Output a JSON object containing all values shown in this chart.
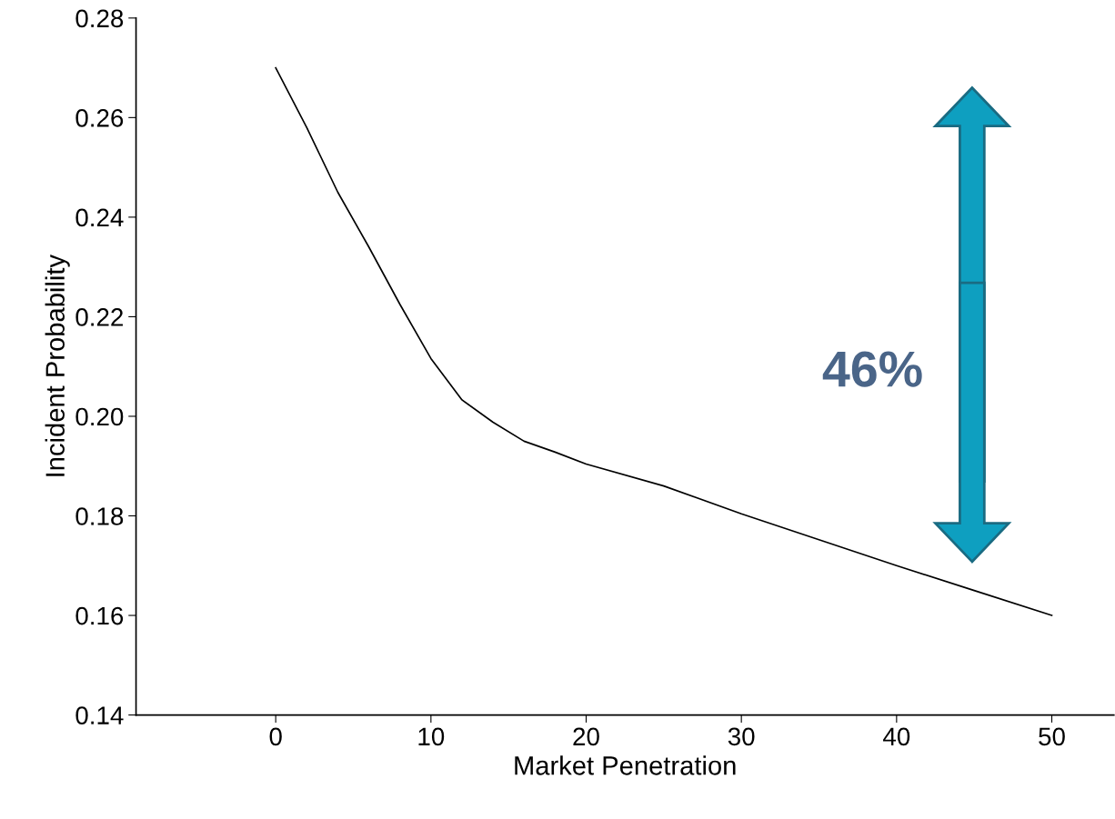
{
  "chart_data": {
    "type": "line",
    "xlabel": "Market Penetration",
    "ylabel": "Incident Probability",
    "x": [
      0,
      2,
      4,
      6,
      8,
      10,
      12,
      14,
      16,
      18,
      20,
      25,
      30,
      35,
      40,
      45,
      50
    ],
    "series": [
      {
        "color": "#000000",
        "values": [
          0.27,
          0.258,
          0.245,
          0.234,
          0.2225,
          0.2116,
          0.2033,
          0.1988,
          0.195,
          0.1928,
          0.1904,
          0.186,
          0.1804,
          0.1752,
          0.17,
          0.165,
          0.16
        ]
      }
    ],
    "xlim": [
      -9,
      54
    ],
    "xticks": [
      0,
      10,
      20,
      30,
      40,
      50
    ],
    "ylim": [
      0.14,
      0.28
    ],
    "yticks": [
      {
        "value": 0.14,
        "label": "0.14"
      },
      {
        "value": 0.16,
        "label": "0.16"
      },
      {
        "value": 0.18,
        "label": "0.18"
      },
      {
        "value": 0.2,
        "label": "0.20"
      },
      {
        "value": 0.22,
        "label": "0.22"
      },
      {
        "value": 0.24,
        "label": "0.24"
      },
      {
        "value": 0.26,
        "label": "0.26"
      },
      {
        "value": 0.28,
        "label": "0.28"
      }
    ],
    "annotations": [
      "46%"
    ],
    "grid": false,
    "marker": "none",
    "line_style": "solid"
  }
}
